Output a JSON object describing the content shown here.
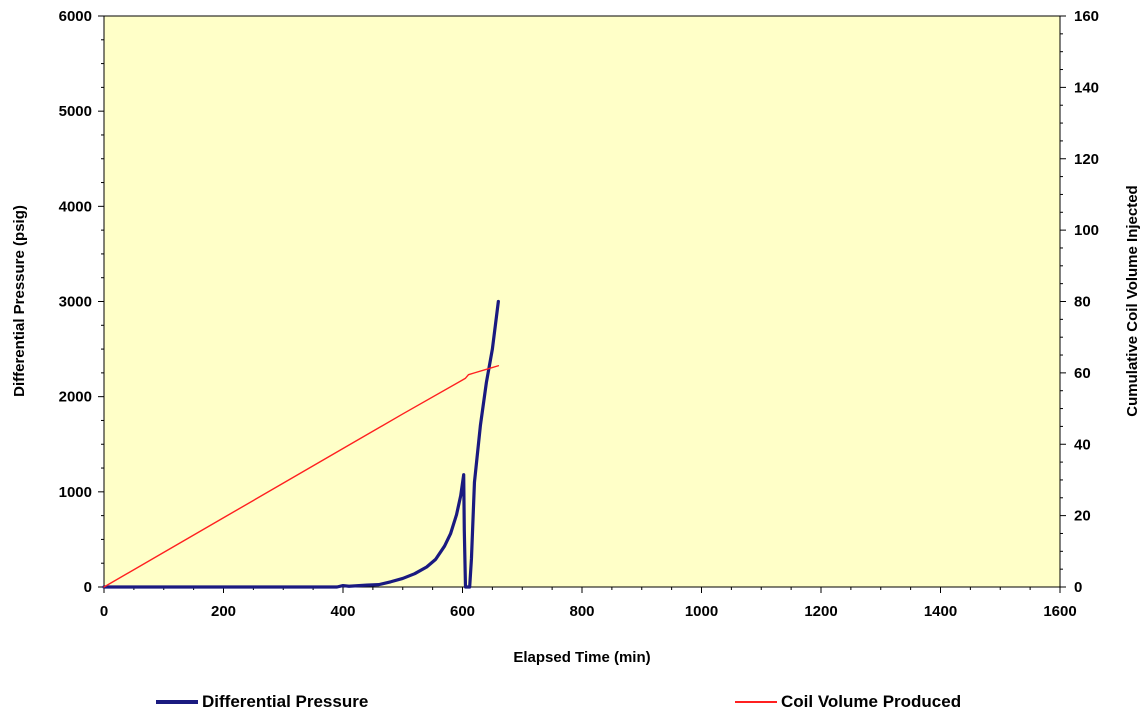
{
  "chart_data": {
    "type": "line",
    "xlabel": "Elapsed Time (min)",
    "ylabel": "Differential Pressure (psig)",
    "y2label": "Cumulative Coil Volume Injected",
    "xlim": [
      0,
      1600
    ],
    "ylim": [
      0,
      6000
    ],
    "y2lim": [
      0,
      160
    ],
    "xticks": [
      0,
      200,
      400,
      600,
      800,
      1000,
      1200,
      1400,
      1600
    ],
    "yticks": [
      0,
      1000,
      2000,
      3000,
      4000,
      5000,
      6000
    ],
    "y2ticks": [
      0,
      20,
      40,
      60,
      80,
      100,
      120,
      140,
      160
    ],
    "grid": false,
    "plot_background": "#ffffc8",
    "legend_position": "bottom",
    "series": [
      {
        "name": "Differential Pressure",
        "axis": "left",
        "color": "#1a1a80",
        "x": [
          0,
          100,
          200,
          300,
          390,
          400,
          410,
          440,
          460,
          480,
          500,
          520,
          540,
          555,
          570,
          580,
          590,
          597,
          602,
          603,
          605,
          610,
          612,
          615,
          620,
          630,
          640,
          650,
          655,
          660
        ],
        "y": [
          0,
          0,
          0,
          0,
          0,
          15,
          8,
          20,
          25,
          55,
          90,
          140,
          210,
          290,
          430,
          560,
          760,
          960,
          1180,
          600,
          0,
          0,
          0,
          300,
          1100,
          1700,
          2150,
          2500,
          2750,
          3000
        ]
      },
      {
        "name": "Coil Volume Produced",
        "axis": "right",
        "color": "#ff2020",
        "x": [
          0,
          100,
          200,
          300,
          400,
          500,
          600,
          605,
          610,
          620,
          640,
          660
        ],
        "y": [
          0,
          9.7,
          19.4,
          29.1,
          38.8,
          48.5,
          58,
          58.5,
          59.5,
          60,
          61,
          62
        ]
      }
    ]
  }
}
